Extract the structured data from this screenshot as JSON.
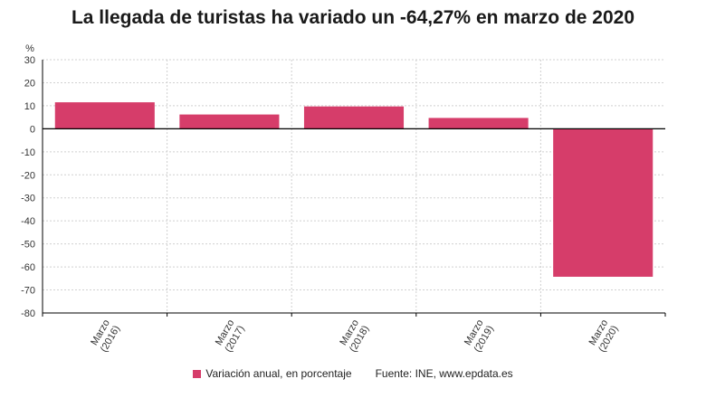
{
  "colors": {
    "bar": "#d63d6a",
    "grid": "#d0d0d0",
    "axis": "#000000",
    "text": "#333333"
  },
  "legend": {
    "series_label": "Variación anual, en porcentaje",
    "source": "Fuente: INE, www.epdata.es"
  },
  "chart_data": {
    "type": "bar",
    "title": "La llegada de turistas ha variado un -64,27% en marzo de 2020",
    "ylabel": "%",
    "xlabel": "",
    "categories": [
      [
        "Marzo",
        "(2016)"
      ],
      [
        "Marzo",
        "(2017)"
      ],
      [
        "Marzo",
        "(2018)"
      ],
      [
        "Marzo",
        "(2019)"
      ],
      [
        "Marzo",
        "(2020)"
      ]
    ],
    "series": [
      {
        "name": "Variación anual, en porcentaje",
        "values": [
          11.5,
          6.2,
          9.7,
          4.7,
          -64.27
        ]
      }
    ],
    "ylim": [
      -80,
      30
    ],
    "yticks": [
      30,
      20,
      10,
      0,
      -10,
      -20,
      -30,
      -40,
      -50,
      -60,
      -70,
      -80
    ],
    "grid": true,
    "legend_position": "bottom"
  }
}
